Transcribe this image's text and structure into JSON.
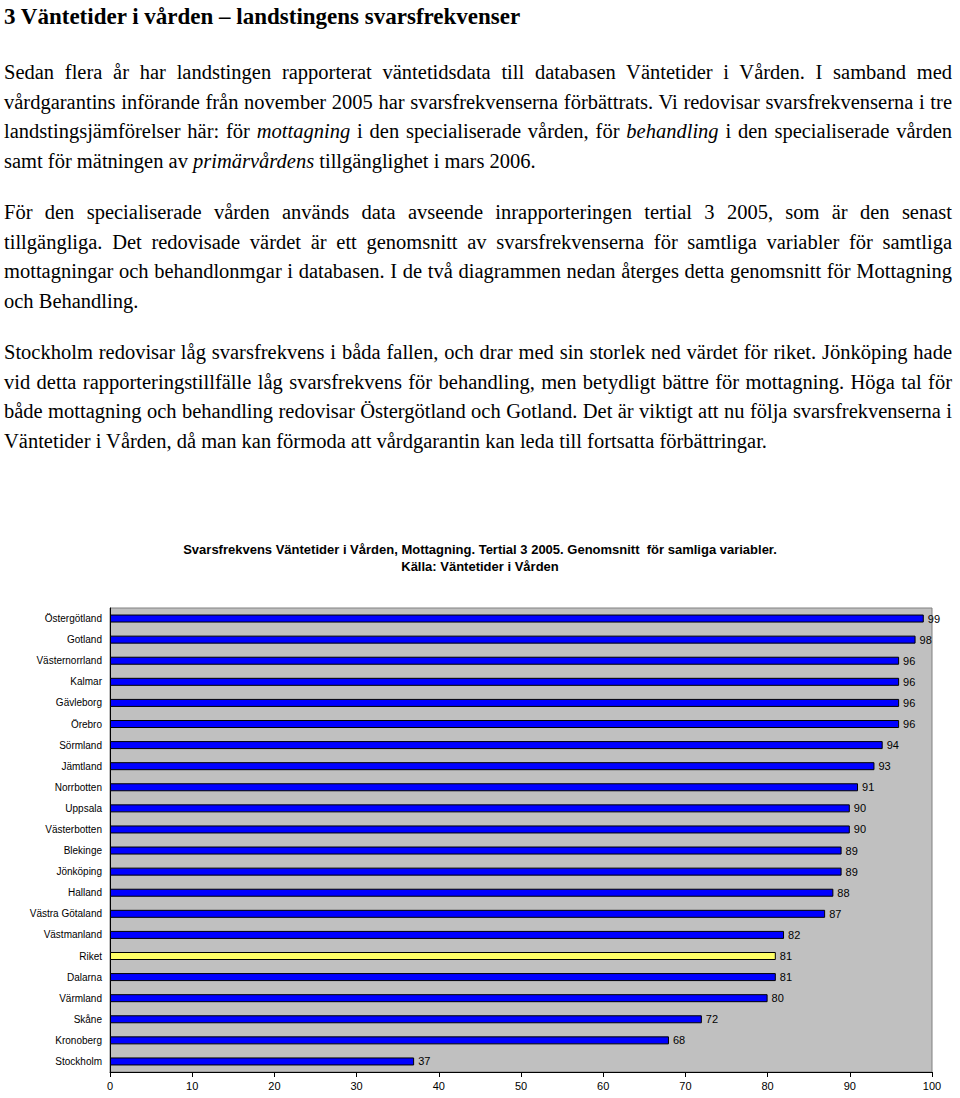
{
  "heading": "3 Väntetider i vården – landstingens svarsfrekvenser",
  "paragraphs": [
    [
      {
        "text": "Sedan flera år har landstingen rapporterat väntetidsdata till databasen Väntetider i Vården. I samband med vårdgarantins införande från november 2005 har svarsfrekvenserna förbättrats. Vi redovisar svarsfrekvenserna i tre landstingsjämförelser här: för ",
        "italic": false
      },
      {
        "text": "mottagning",
        "italic": true
      },
      {
        "text": " i den specialiserade vården, för ",
        "italic": false
      },
      {
        "text": "behandling",
        "italic": true
      },
      {
        "text": " i den specialiserade vården samt för mätningen av ",
        "italic": false
      },
      {
        "text": "primärvårdens",
        "italic": true
      },
      {
        "text": " tillgänglighet i mars 2006.",
        "italic": false
      }
    ],
    [
      {
        "text": "För den specialiserade vården används data avseende inrapporteringen tertial 3 2005, som är den senast tillgängliga. Det redovisade värdet är ett genomsnitt av svarsfrekvenserna för samtliga variabler för samtliga mottagningar och behandlonmgar i databasen. I de två diagrammen nedan återges detta genomsnitt för Mottagning och Behandling.",
        "italic": false
      }
    ],
    [
      {
        "text": "Stockholm redovisar låg svarsfrekvens i båda fallen, och drar med sin storlek ned värdet för riket. Jönköping hade vid detta rapporteringstillfälle låg svarsfrekvens för behandling, men betydligt bättre för mottagning. Höga tal för både mottagning och behandling redovisar Östergötland och Gotland. Det är viktigt att nu följa svarsfrekvenserna i Väntetider i Vården, då man kan förmoda att vårdgarantin kan leda till fortsatta förbättringar.",
        "italic": false
      }
    ]
  ],
  "chart_data": {
    "type": "bar",
    "title": "Svarsfrekvens Väntetider i Vården, Mottagning. Tertial 3 2005. Genomsnitt  för samliga variabler.",
    "subtitle": "Källa: Väntetider i Vården",
    "orientation": "horizontal",
    "categories": [
      "Östergötland",
      "Gotland",
      "Västernorrland",
      "Kalmar",
      "Gävleborg",
      "Örebro",
      "Sörmland",
      "Jämtland",
      "Norrbotten",
      "Uppsala",
      "Västerbotten",
      "Blekinge",
      "Jönköping",
      "Halland",
      "Västra Götaland",
      "Västmanland",
      "Riket",
      "Dalarna",
      "Värmland",
      "Skåne",
      "Kronoberg",
      "Stockholm"
    ],
    "values": [
      99,
      98,
      96,
      96,
      96,
      96,
      94,
      93,
      91,
      90,
      90,
      89,
      89,
      88,
      87,
      82,
      81,
      81,
      80,
      72,
      68,
      37
    ],
    "colors": [
      "#0000ff",
      "#0000ff",
      "#0000ff",
      "#0000ff",
      "#0000ff",
      "#0000ff",
      "#0000ff",
      "#0000ff",
      "#0000ff",
      "#0000ff",
      "#0000ff",
      "#0000ff",
      "#0000ff",
      "#0000ff",
      "#0000ff",
      "#0000ff",
      "#ffff66",
      "#0000ff",
      "#0000ff",
      "#0000ff",
      "#0000ff",
      "#0000ff"
    ],
    "xlim": [
      0,
      100
    ],
    "xticks": [
      0,
      10,
      20,
      30,
      40,
      50,
      60,
      70,
      80,
      90,
      100
    ],
    "grid": false,
    "data_labels": true
  }
}
